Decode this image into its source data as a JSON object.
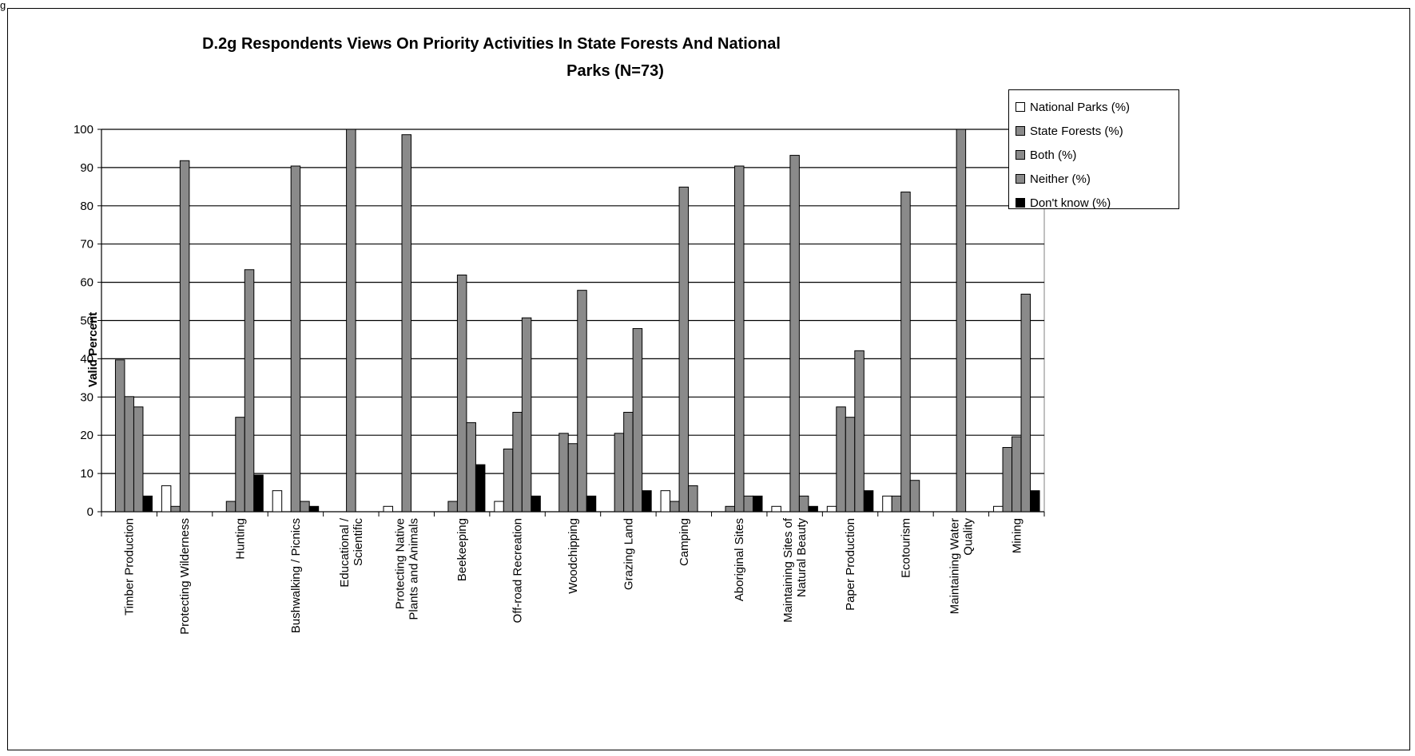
{
  "figure_label": "g",
  "chart_data": {
    "type": "bar",
    "title": "D.2g Respondents Views On Priority Activities In State Forests And National",
    "title_line2": "Parks (N=73)",
    "xlabel": "",
    "ylabel": "Valid Percent",
    "ylim": [
      0,
      100
    ],
    "yticks": [
      0,
      10,
      20,
      30,
      40,
      50,
      60,
      70,
      80,
      90,
      100
    ],
    "grid": true,
    "legend_position": "top-right",
    "categories": [
      "Timber Production",
      "Protecting Wilderness",
      "Hunting",
      "Bushwalking / Picnics",
      "Educational / Scientific",
      "Protecting Native Plants and Animals",
      "Beekeeping",
      "Off-road Recreation",
      "Woodchipping",
      "Grazing Land",
      "Camping",
      "Aboriginal Sites",
      "Maintaining Sites of Natural Beauty",
      "Paper Production",
      "Ecotourism",
      "Maintaining Water Quality",
      "Mining"
    ],
    "category_lines": [
      [
        "Timber Production"
      ],
      [
        "Protecting Wilderness"
      ],
      [
        "Hunting"
      ],
      [
        "Bushwalking / Picnics"
      ],
      [
        "Educational /",
        "Scientific"
      ],
      [
        "Protecting Native",
        "Plants and Animals"
      ],
      [
        "Beekeeping"
      ],
      [
        "Off-road Recreation"
      ],
      [
        "Woodchipping"
      ],
      [
        "Grazing Land"
      ],
      [
        "Camping"
      ],
      [
        "Aboriginal Sites"
      ],
      [
        "Maintaining Sites of",
        "Natural Beauty"
      ],
      [
        "Paper Production"
      ],
      [
        "Ecotourism"
      ],
      [
        "Maintaining Water",
        "Quality"
      ],
      [
        "Mining"
      ]
    ],
    "series": [
      {
        "name": "National Parks (%)",
        "color": "#ffffff",
        "values": [
          0,
          6.8,
          0,
          5.5,
          0,
          1.4,
          0,
          2.7,
          0,
          0,
          5.5,
          0,
          1.4,
          1.4,
          4.1,
          0,
          1.4
        ]
      },
      {
        "name": "State Forests (%)",
        "color": "#8a8a8a",
        "values": [
          39.7,
          1.4,
          2.7,
          0,
          0,
          0,
          2.7,
          16.4,
          20.5,
          20.5,
          2.7,
          1.4,
          0,
          27.4,
          4.1,
          0,
          16.8
        ]
      },
      {
        "name": "Both (%)",
        "color": "#8a8a8a",
        "values": [
          30.1,
          91.8,
          24.7,
          90.4,
          100,
          98.6,
          61.9,
          26.0,
          17.8,
          26.0,
          84.9,
          90.4,
          93.2,
          24.7,
          83.6,
          100,
          19.6
        ]
      },
      {
        "name": "Neither (%)",
        "color": "#8a8a8a",
        "values": [
          27.4,
          0,
          63.3,
          2.7,
          0,
          0,
          23.3,
          50.7,
          57.9,
          47.9,
          6.8,
          4.1,
          4.1,
          42.1,
          8.2,
          0,
          56.9
        ]
      },
      {
        "name": "Don't know (%)",
        "color": "#000000",
        "values": [
          4.1,
          0,
          9.6,
          1.4,
          0,
          0,
          12.3,
          4.1,
          4.1,
          5.5,
          0,
          4.1,
          1.4,
          5.5,
          0,
          0,
          5.5
        ]
      }
    ]
  }
}
